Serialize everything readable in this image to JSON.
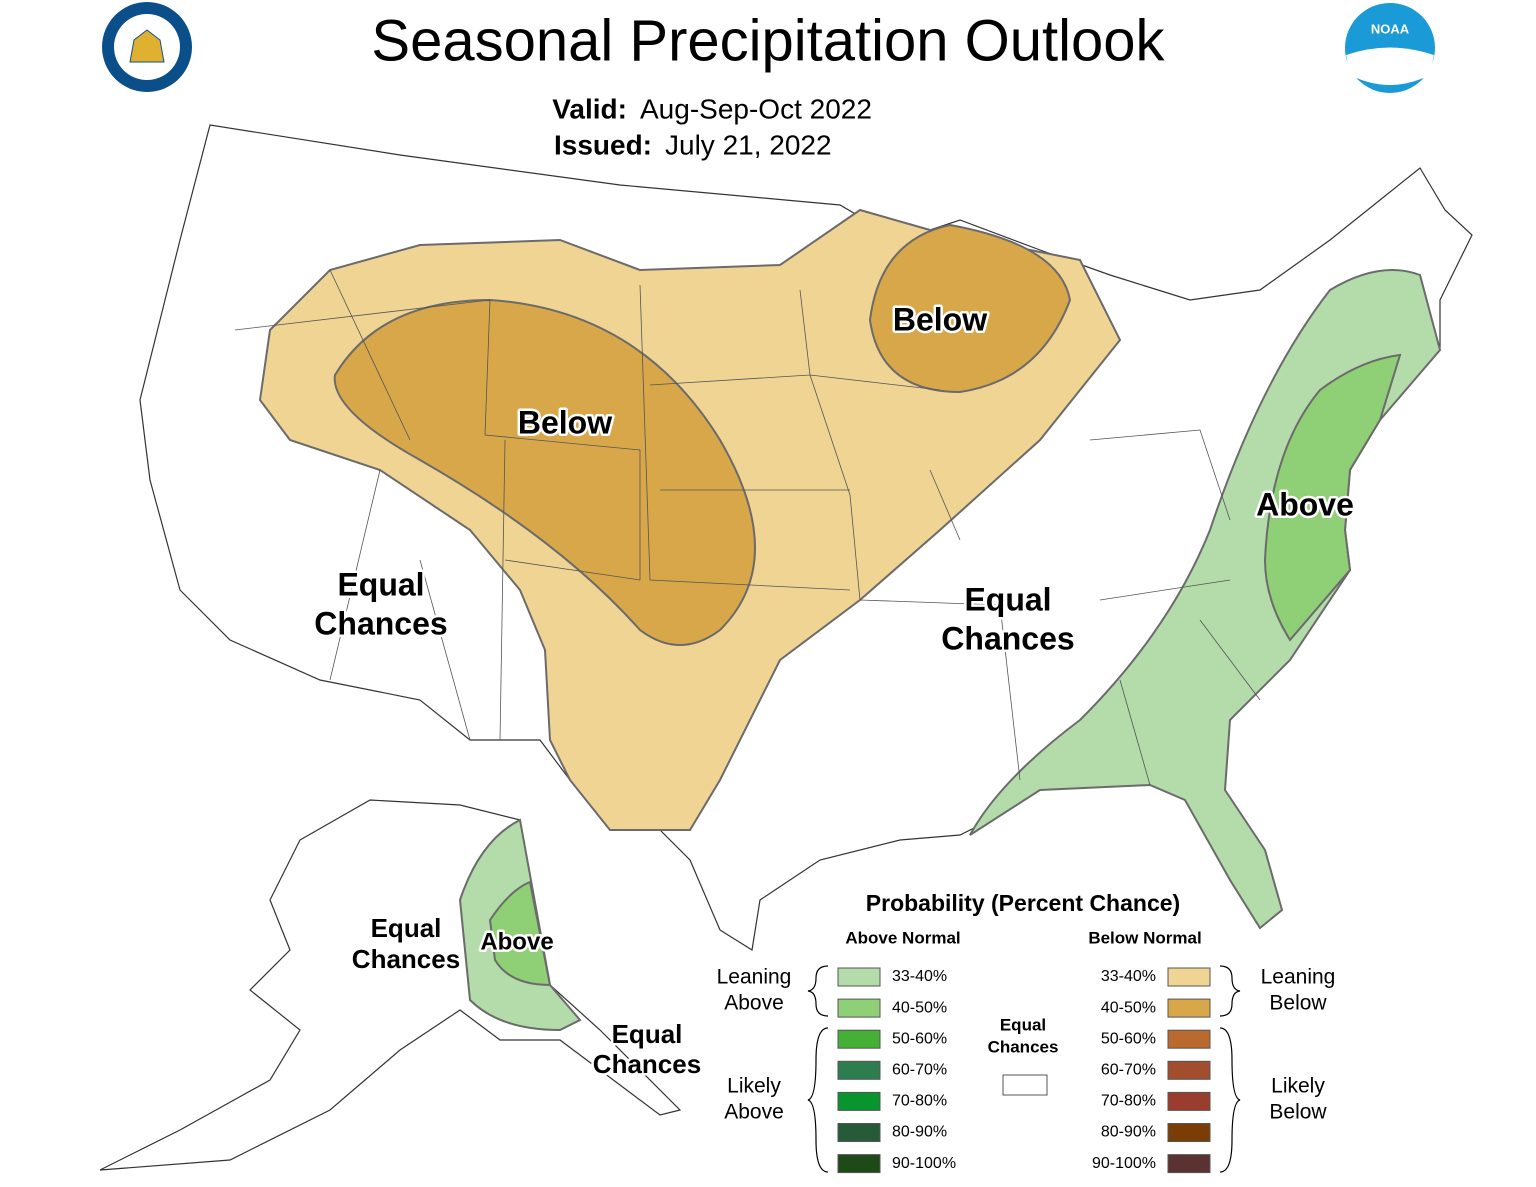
{
  "header": {
    "title": "Seasonal Precipitation Outlook",
    "valid_label": "Valid:",
    "valid": "Aug-Sep-Oct 2022",
    "issued_label": "Issued:",
    "issued": "July 21, 2022",
    "logo_text": "NOAA"
  },
  "map_labels": [
    {
      "lines": [
        "Below"
      ]
    },
    {
      "lines": [
        "Below"
      ]
    },
    {
      "lines": [
        "Above"
      ]
    },
    {
      "lines": [
        "Equal",
        "Chances"
      ]
    },
    {
      "lines": [
        "Equal",
        "Chances"
      ]
    },
    {
      "lines": [
        "Equal",
        "Chances"
      ]
    },
    {
      "lines": [
        "Above"
      ]
    },
    {
      "lines": [
        "Equal",
        "Chances"
      ]
    }
  ],
  "legend": {
    "title": "Probability (Percent Chance)",
    "above_header": "Above Normal",
    "below_header": "Below Normal",
    "above": [
      {
        "label": "33-40%",
        "color": "#b3dcaa"
      },
      {
        "label": "40-50%",
        "color": "#8fcf76"
      },
      {
        "label": "50-60%",
        "color": "#44b035"
      },
      {
        "label": "60-70%",
        "color": "#2e7d4f"
      },
      {
        "label": "70-80%",
        "color": "#09952e"
      },
      {
        "label": "80-90%",
        "color": "#275a37"
      },
      {
        "label": "90-100%",
        "color": "#1e4a17"
      }
    ],
    "below": [
      {
        "label": "33-40%",
        "color": "#f0d493"
      },
      {
        "label": "40-50%",
        "color": "#d8a74a"
      },
      {
        "label": "50-60%",
        "color": "#bb6a2f"
      },
      {
        "label": "60-70%",
        "color": "#a24e2e"
      },
      {
        "label": "70-80%",
        "color": "#9b3d2e"
      },
      {
        "label": "80-90%",
        "color": "#7b3d06"
      },
      {
        "label": "90-100%",
        "color": "#5a3232"
      }
    ],
    "groups": [
      {
        "lines": [
          "Leaning",
          "Above"
        ]
      },
      {
        "lines": [
          "Likely",
          "Above"
        ]
      },
      {
        "lines": [
          "Leaning",
          "Below"
        ]
      },
      {
        "lines": [
          "Likely",
          "Below"
        ]
      }
    ],
    "equal_chances": {
      "lines": [
        "Equal",
        "Chances"
      ]
    }
  }
}
